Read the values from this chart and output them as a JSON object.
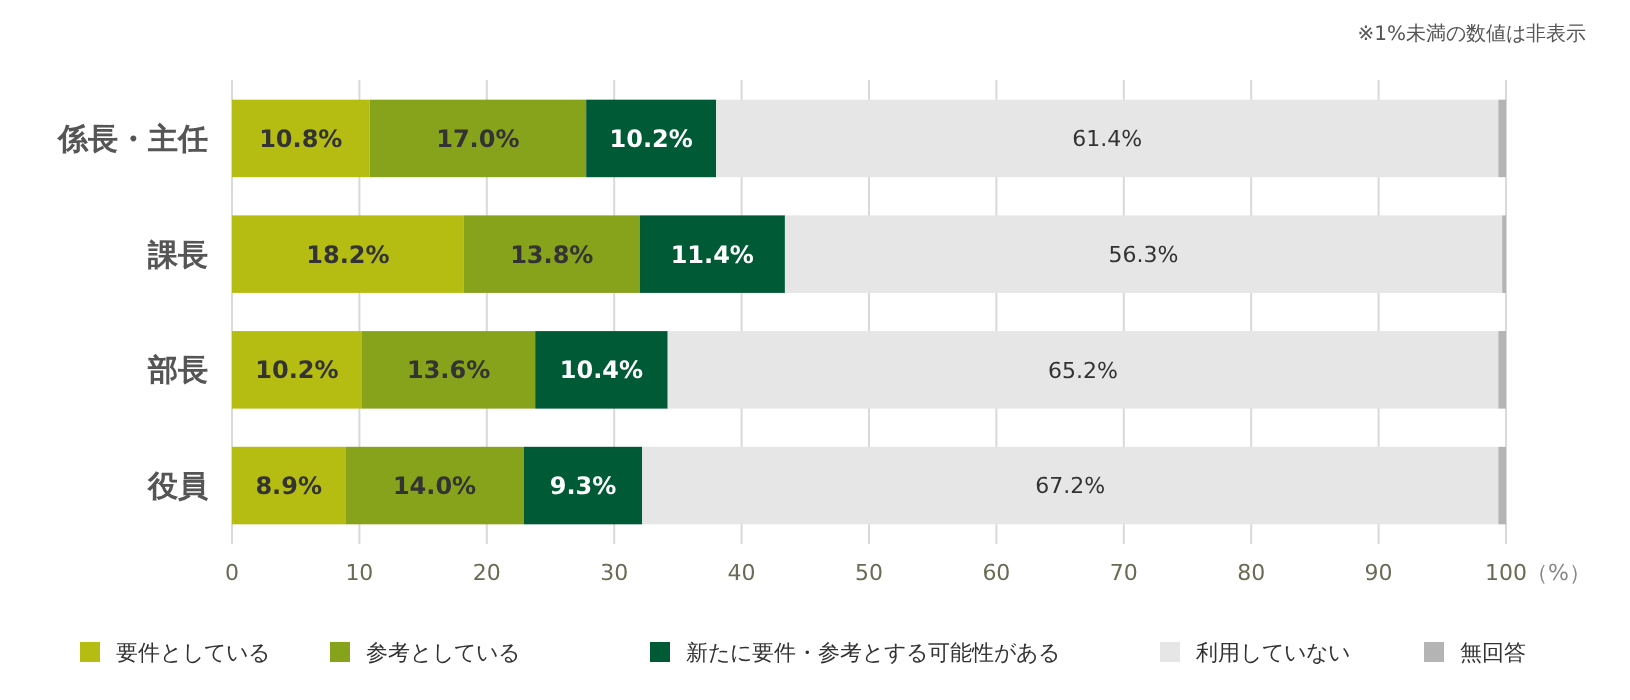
{
  "chart_data": {
    "type": "bar",
    "orientation": "horizontal",
    "stacked": true,
    "categories": [
      "係長・主任",
      "課長",
      "部長",
      "役員"
    ],
    "series": [
      {
        "name": "要件としている",
        "color": "#b5bd12",
        "values": [
          10.8,
          18.2,
          10.2,
          8.9
        ],
        "value_labels": [
          "10.8%",
          "18.2%",
          "10.2%",
          "8.9%"
        ]
      },
      {
        "name": "参考としている",
        "color": "#87a31c",
        "values": [
          17.0,
          13.8,
          13.6,
          14.0
        ],
        "value_labels": [
          "17.0%",
          "13.8%",
          "13.6%",
          "14.0%"
        ]
      },
      {
        "name": "新たに要件・参考とする可能性がある",
        "color": "#005a35",
        "values": [
          10.2,
          11.4,
          10.4,
          9.3
        ],
        "value_labels": [
          "10.2%",
          "11.4%",
          "10.4%",
          "9.3%"
        ]
      },
      {
        "name": "利用していない",
        "color": "#e6e6e6",
        "values": [
          61.4,
          56.3,
          65.2,
          67.2
        ],
        "value_labels": [
          "61.4%",
          "56.3%",
          "65.2%",
          "67.2%"
        ]
      },
      {
        "name": "無回答",
        "color": "#b4b4b4",
        "values": [
          0.6,
          0.3,
          0.6,
          0.6
        ]
      }
    ],
    "xlim": [
      0,
      100
    ],
    "xticks": [
      0,
      10,
      20,
      30,
      40,
      50,
      60,
      70,
      80,
      90,
      100
    ],
    "xlabel": "（%）",
    "grid": "x",
    "legend": "bottom",
    "annotations": [
      "※1%未満の数値は非表示"
    ]
  }
}
